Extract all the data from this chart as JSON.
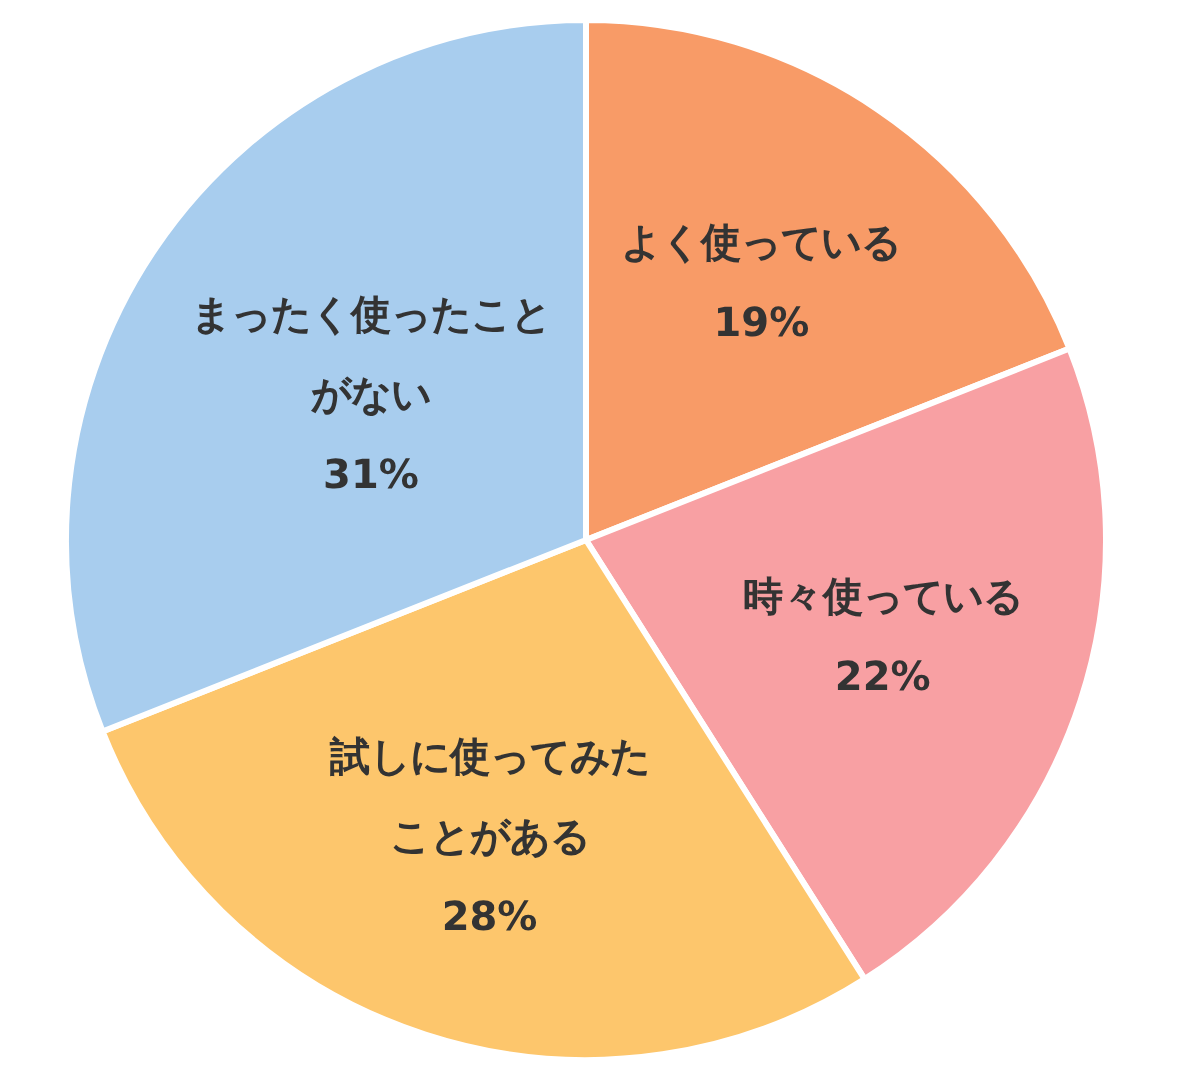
{
  "chart_data": {
    "type": "pie",
    "categories": [
      "よく使っている",
      "時々使っている",
      "試しに使ってみたことがある",
      "まったく使ったことがない"
    ],
    "values": [
      19,
      22,
      28,
      31
    ],
    "colors": [
      "#f89b67",
      "#f8a0a3",
      "#fdc66c",
      "#a8cdee"
    ],
    "value_labels": [
      "19%",
      "22%",
      "28%",
      "31%"
    ]
  }
}
